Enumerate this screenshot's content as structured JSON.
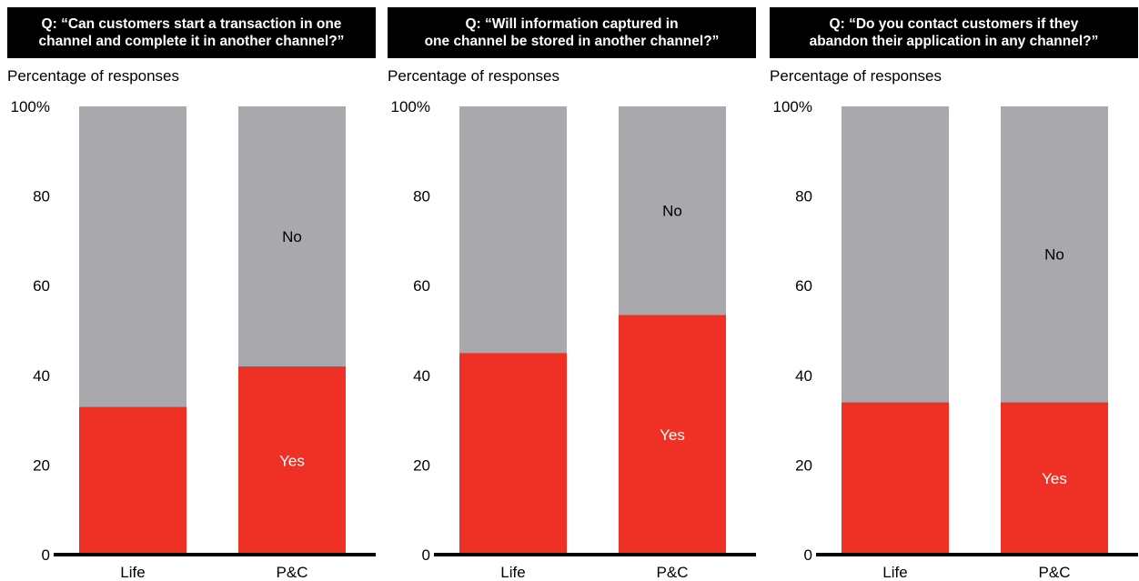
{
  "chart_data": [
    {
      "type": "bar",
      "stacked": true,
      "title_lines": [
        "Q: “Can customers start a transaction in one",
        "channel and complete it in another channel?”"
      ],
      "ylabel": "Percentage of responses",
      "categories": [
        "Life",
        "P&C"
      ],
      "yticks": [
        "0",
        "20",
        "40",
        "60",
        "80",
        "100%"
      ],
      "ylim": [
        0,
        100
      ],
      "grid": false,
      "series": [
        {
          "name": "Yes",
          "values": [
            33,
            42
          ],
          "color": "#ee3124",
          "label_color": "#ffffff",
          "label_cat": 1
        },
        {
          "name": "No",
          "values": [
            67,
            58
          ],
          "color": "#a9a9ad",
          "label_color": "#000000",
          "label_cat": 1
        }
      ]
    },
    {
      "type": "bar",
      "stacked": true,
      "title_lines": [
        "Q: “Will information captured in",
        "one channel be stored in another channel?”"
      ],
      "ylabel": "Percentage of responses",
      "categories": [
        "Life",
        "P&C"
      ],
      "yticks": [
        "0",
        "20",
        "40",
        "60",
        "80",
        "100%"
      ],
      "ylim": [
        0,
        100
      ],
      "grid": false,
      "series": [
        {
          "name": "Yes",
          "values": [
            45,
            53.5
          ],
          "color": "#ee3124",
          "label_color": "#ffffff",
          "label_cat": 1
        },
        {
          "name": "No",
          "values": [
            55,
            46.5
          ],
          "color": "#a9a9ad",
          "label_color": "#000000",
          "label_cat": 1
        }
      ]
    },
    {
      "type": "bar",
      "stacked": true,
      "title_lines": [
        "Q: “Do you contact customers if they",
        "abandon their application in any channel?”"
      ],
      "ylabel": "Percentage of responses",
      "categories": [
        "Life",
        "P&C"
      ],
      "yticks": [
        "0",
        "20",
        "40",
        "60",
        "80",
        "100%"
      ],
      "ylim": [
        0,
        100
      ],
      "grid": false,
      "series": [
        {
          "name": "Yes",
          "values": [
            34,
            34
          ],
          "color": "#ee3124",
          "label_color": "#ffffff",
          "label_cat": 1
        },
        {
          "name": "No",
          "values": [
            66,
            66
          ],
          "color": "#a9a9ad",
          "label_color": "#000000",
          "label_cat": 1
        }
      ]
    }
  ]
}
